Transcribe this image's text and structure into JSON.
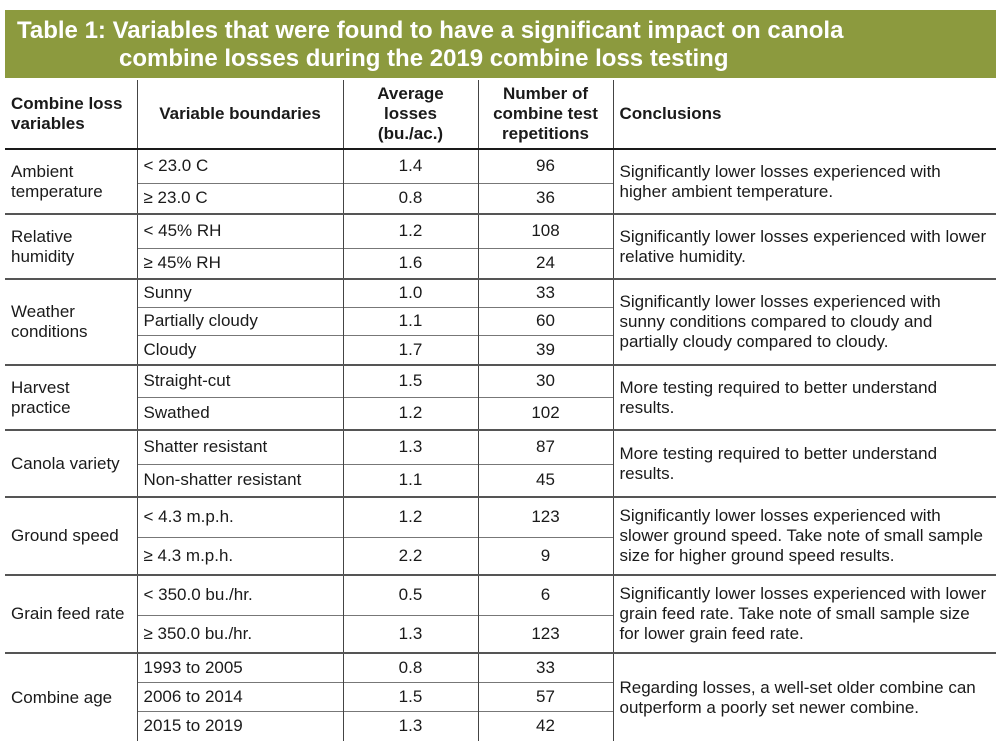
{
  "title": {
    "line1": "Table 1: Variables that were found to have a significant impact on canola",
    "line2": "combine losses during the 2019 combine loss testing"
  },
  "headers": {
    "variable": "Combine loss variables",
    "boundaries": "Variable boundaries",
    "losses": "Average losses (bu./ac.)",
    "reps": "Number of combine test repetitions",
    "conclusions": "Conclusions"
  },
  "groups": [
    {
      "variable": "Ambient temperature",
      "conclusion": "Significantly lower losses experienced with higher ambient temperature.",
      "rows": [
        {
          "boundary": "< 23.0 C",
          "losses": "1.4",
          "reps": "96"
        },
        {
          "boundary": "≥ 23.0 C",
          "losses": "0.8",
          "reps": "36"
        }
      ]
    },
    {
      "variable": "Relative humidity",
      "conclusion": "Significantly lower losses experienced with lower relative humidity.",
      "rows": [
        {
          "boundary": "< 45% RH",
          "losses": "1.2",
          "reps": "108"
        },
        {
          "boundary": "≥ 45% RH",
          "losses": "1.6",
          "reps": "24"
        }
      ]
    },
    {
      "variable": "Weather conditions",
      "conclusion": "Significantly lower losses experienced with sunny conditions compared to cloudy and partially cloudy compared to cloudy.",
      "rows": [
        {
          "boundary": "Sunny",
          "losses": "1.0",
          "reps": "33"
        },
        {
          "boundary": "Partially cloudy",
          "losses": "1.1",
          "reps": "60"
        },
        {
          "boundary": "Cloudy",
          "losses": "1.7",
          "reps": "39"
        }
      ]
    },
    {
      "variable": "Harvest practice",
      "conclusion": "More testing required to better understand results.",
      "rows": [
        {
          "boundary": "Straight-cut",
          "losses": "1.5",
          "reps": "30"
        },
        {
          "boundary": "Swathed",
          "losses": "1.2",
          "reps": "102"
        }
      ]
    },
    {
      "variable": "Canola variety",
      "conclusion": "More testing required to better understand results.",
      "rows": [
        {
          "boundary": "Shatter resistant",
          "losses": "1.3",
          "reps": "87"
        },
        {
          "boundary": "Non-shatter resistant",
          "losses": "1.1",
          "reps": "45"
        }
      ]
    },
    {
      "variable": "Ground speed",
      "conclusion": "Significantly lower losses experienced with slower ground speed. Take note of small sample size for higher ground speed results.",
      "rows": [
        {
          "boundary": "< 4.3 m.p.h.",
          "losses": "1.2",
          "reps": "123"
        },
        {
          "boundary": "≥ 4.3 m.p.h.",
          "losses": "2.2",
          "reps": "9"
        }
      ]
    },
    {
      "variable": "Grain feed rate",
      "conclusion": "Significantly lower losses experienced with lower grain feed rate. Take note of small sample size for lower grain feed rate.",
      "rows": [
        {
          "boundary": "< 350.0 bu./hr.",
          "losses": "0.5",
          "reps": "6"
        },
        {
          "boundary": "≥ 350.0 bu./hr.",
          "losses": "1.3",
          "reps": "123"
        }
      ]
    },
    {
      "variable": "Combine age",
      "conclusion": "Regarding losses, a well-set older combine can outperform a poorly set newer combine.",
      "rows": [
        {
          "boundary": "1993 to 2005",
          "losses": "0.8",
          "reps": "33"
        },
        {
          "boundary": "2006 to 2014",
          "losses": "1.5",
          "reps": "57"
        },
        {
          "boundary": "2015 to 2019",
          "losses": "1.3",
          "reps": "42"
        }
      ]
    }
  ]
}
